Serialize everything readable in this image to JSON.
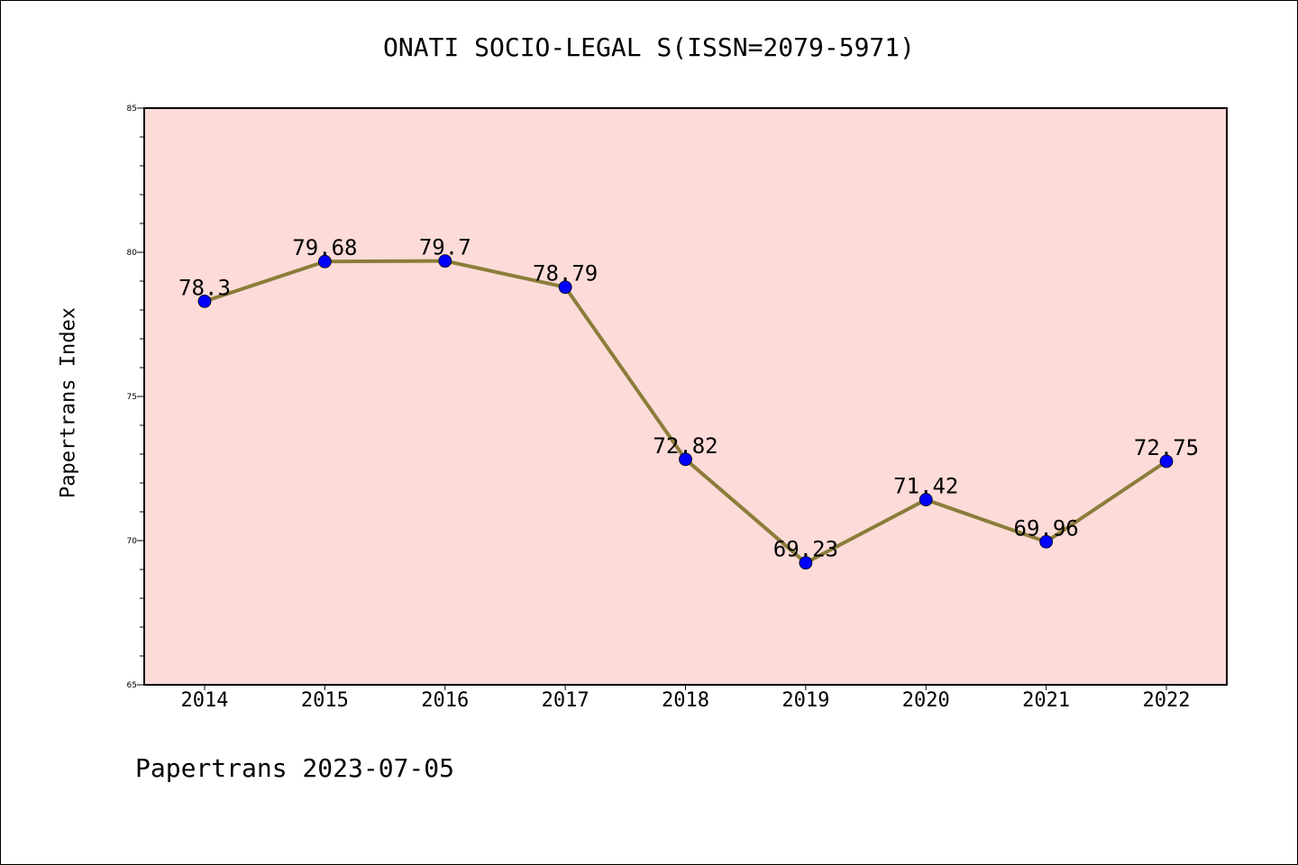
{
  "chart_data": {
    "type": "line",
    "title": "ONATI SOCIO-LEGAL S(ISSN=2079-5971)",
    "xlabel": "",
    "ylabel": "Papertrans Index",
    "categories": [
      "2014",
      "2015",
      "2016",
      "2017",
      "2018",
      "2019",
      "2020",
      "2021",
      "2022"
    ],
    "series": [
      {
        "values": [
          78.3,
          79.68,
          79.7,
          78.79,
          72.82,
          69.23,
          71.42,
          69.96,
          72.75
        ],
        "labels": [
          "78.3",
          "79.68",
          "79.7",
          "78.79",
          "72.82",
          "69.23",
          "71.42",
          "69.96",
          "72.75"
        ],
        "line_color": "#8b7d3a",
        "marker_color": "#0000ff"
      }
    ],
    "ylim": [
      65,
      85
    ],
    "y_ticks": [
      "65",
      "70",
      "75",
      "80",
      "85"
    ],
    "plot_background": "#fddbd8",
    "grid": false
  },
  "footer": "Papertrans 2023-07-05"
}
